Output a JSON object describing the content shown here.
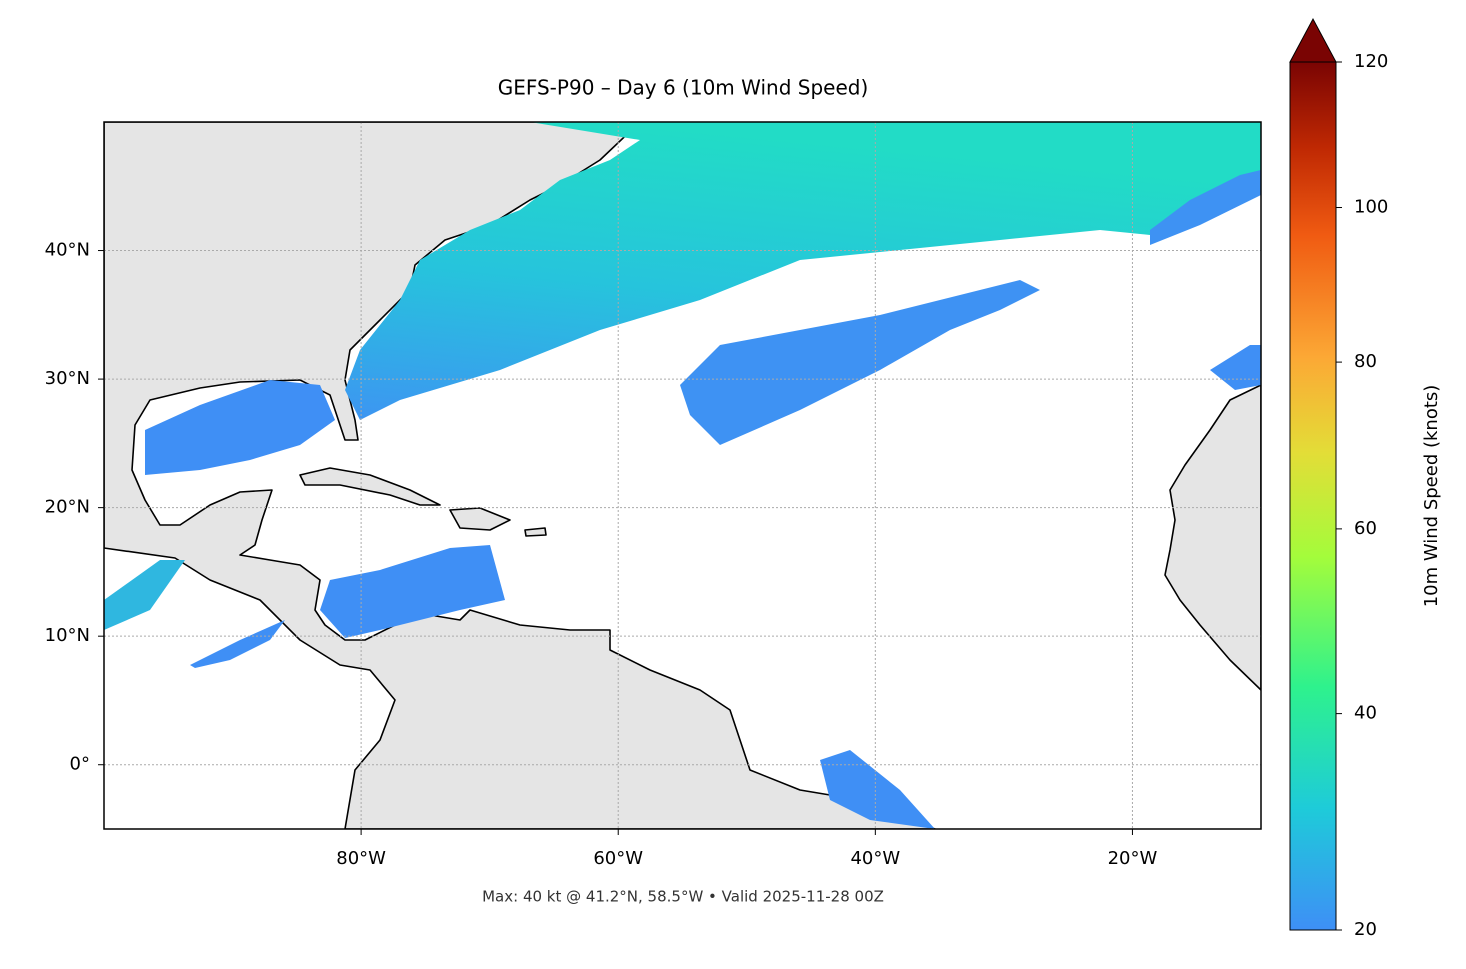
{
  "chart_data": {
    "type": "map",
    "title": "GEFS-P90 – Day 6 (10m Wind Speed)",
    "caption": "Max: 40 kt @ 41.2°N, 58.5°W • Valid 2025-11-28 00Z",
    "xlim": [
      -100,
      -10
    ],
    "ylim": [
      -5,
      50
    ],
    "xticks": [
      {
        "value": -80,
        "label": "80°W"
      },
      {
        "value": -60,
        "label": "60°W"
      },
      {
        "value": -40,
        "label": "40°W"
      },
      {
        "value": -20,
        "label": "20°W"
      }
    ],
    "yticks": [
      {
        "value": 0,
        "label": "0°"
      },
      {
        "value": 10,
        "label": "10°N"
      },
      {
        "value": 20,
        "label": "20°N"
      },
      {
        "value": 30,
        "label": "30°N"
      },
      {
        "value": 40,
        "label": "40°N"
      }
    ],
    "grid": true,
    "colorbar": {
      "label": "10m Wind Speed (knots)",
      "lim": [
        20,
        120
      ],
      "ticks": [
        20,
        40,
        60,
        80,
        100,
        120
      ],
      "extend": "max"
    }
  }
}
